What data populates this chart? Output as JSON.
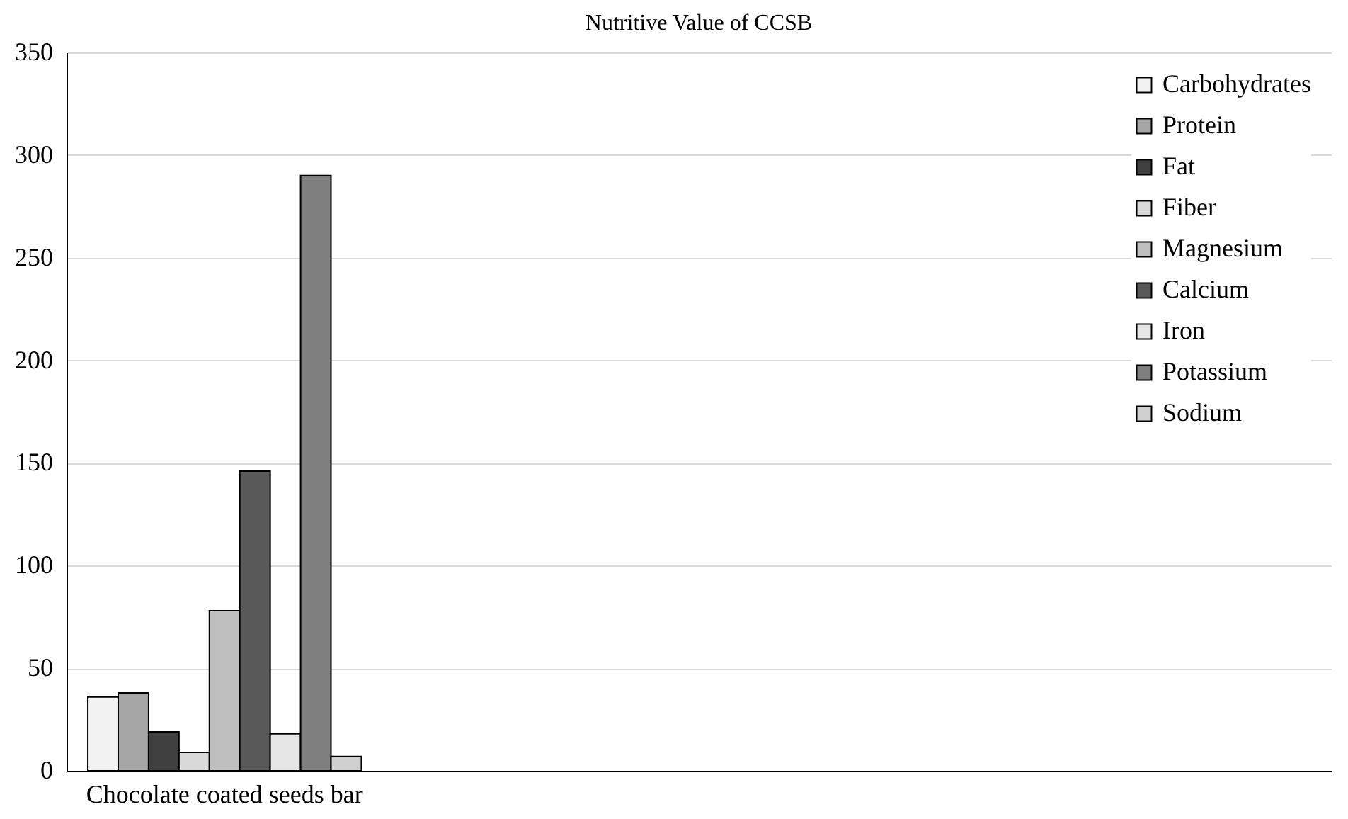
{
  "chart_data": {
    "type": "bar",
    "title": "Nutritive Value of CCSB",
    "categories": [
      "Chocolate coated seeds bar",
      null,
      null,
      null
    ],
    "series": [
      {
        "name": "Carbohydrates",
        "color": "#f2f2f2",
        "values": [
          36,
          null,
          null,
          null
        ]
      },
      {
        "name": "Protein",
        "color": "#a6a6a6",
        "values": [
          38,
          null,
          null,
          null
        ]
      },
      {
        "name": "Fat",
        "color": "#404040",
        "values": [
          19,
          null,
          null,
          null
        ]
      },
      {
        "name": "Fiber",
        "color": "#d9d9d9",
        "values": [
          9,
          null,
          null,
          null
        ]
      },
      {
        "name": "Magnesium",
        "color": "#bfbfbf",
        "values": [
          78,
          null,
          null,
          null
        ]
      },
      {
        "name": "Calcium",
        "color": "#595959",
        "values": [
          146,
          null,
          null,
          null
        ]
      },
      {
        "name": "Iron",
        "color": "#e6e6e6",
        "values": [
          18,
          null,
          null,
          null
        ]
      },
      {
        "name": "Potassium",
        "color": "#7f7f7f",
        "values": [
          290,
          null,
          null,
          null
        ]
      },
      {
        "name": "Sodium",
        "color": "#d0d0d0",
        "values": [
          7,
          null,
          null,
          null
        ]
      }
    ],
    "ylim": [
      0,
      350
    ],
    "yticks": [
      0,
      50,
      100,
      150,
      200,
      250,
      300,
      350
    ],
    "grid": "y",
    "legend": "top right"
  }
}
